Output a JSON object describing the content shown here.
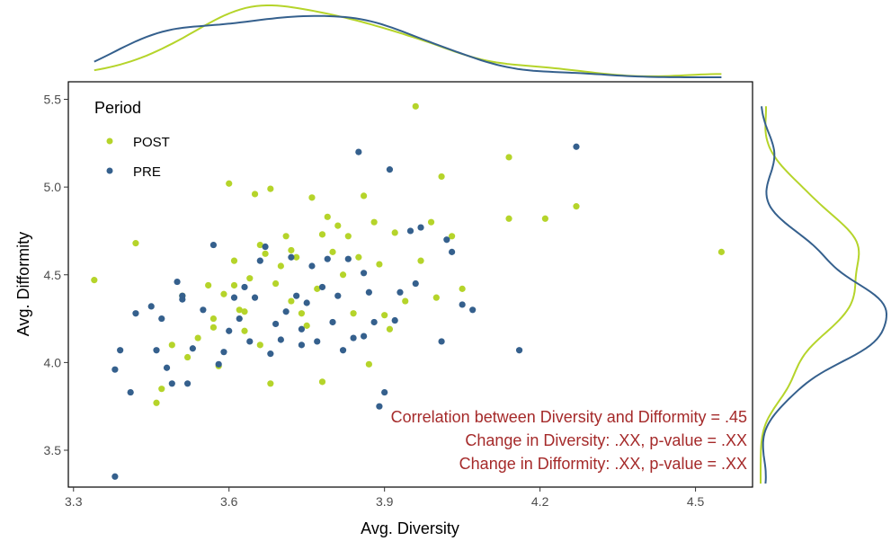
{
  "chart_data": {
    "type": "scatter",
    "title": "",
    "xlabel": "Avg. Diversity",
    "ylabel": "Avg. Difformity",
    "xlim": [
      3.29,
      4.61
    ],
    "ylim": [
      3.29,
      5.6
    ],
    "xticks": [
      3.3,
      3.6,
      3.9,
      4.2,
      4.5
    ],
    "xtick_labels": [
      "3.3",
      "3.6",
      "3.9",
      "4.2",
      "4.5"
    ],
    "yticks": [
      3.5,
      4.0,
      4.5,
      5.0,
      5.5
    ],
    "ytick_labels": [
      "3.5",
      "4.0",
      "4.5",
      "5.0",
      "5.5"
    ],
    "grid": false,
    "legend": {
      "title": "Period",
      "placement": "top-left",
      "entries": [
        "POST",
        "PRE"
      ]
    },
    "marginals": "density curves for each series above (x) and right (y)",
    "annotations": [
      "Correlation between Diversity and Difformity = .45",
      "Change in Diversity: .XX, p-value = .XX",
      "Change in Difformity: .XX, p-value = .XX"
    ],
    "series": [
      {
        "name": "POST",
        "color": "#b5d42a",
        "points": [
          [
            3.34,
            4.47
          ],
          [
            3.42,
            4.68
          ],
          [
            3.46,
            3.77
          ],
          [
            3.47,
            3.85
          ],
          [
            3.49,
            4.1
          ],
          [
            3.51,
            4.38
          ],
          [
            3.52,
            4.03
          ],
          [
            3.54,
            4.14
          ],
          [
            3.56,
            4.44
          ],
          [
            3.57,
            4.2
          ],
          [
            3.58,
            3.98
          ],
          [
            3.59,
            4.39
          ],
          [
            3.6,
            5.02
          ],
          [
            3.61,
            4.58
          ],
          [
            3.61,
            4.44
          ],
          [
            3.62,
            4.3
          ],
          [
            3.63,
            4.18
          ],
          [
            3.64,
            4.48
          ],
          [
            3.65,
            4.96
          ],
          [
            3.66,
            4.1
          ],
          [
            3.66,
            4.67
          ],
          [
            3.67,
            4.62
          ],
          [
            3.68,
            4.99
          ],
          [
            3.69,
            4.45
          ],
          [
            3.7,
            4.55
          ],
          [
            3.71,
            4.72
          ],
          [
            3.72,
            4.35
          ],
          [
            3.73,
            4.6
          ],
          [
            3.74,
            4.28
          ],
          [
            3.75,
            4.21
          ],
          [
            3.76,
            4.94
          ],
          [
            3.77,
            4.42
          ],
          [
            3.78,
            4.73
          ],
          [
            3.79,
            4.83
          ],
          [
            3.8,
            4.63
          ],
          [
            3.81,
            4.78
          ],
          [
            3.82,
            4.5
          ],
          [
            3.83,
            4.72
          ],
          [
            3.84,
            4.28
          ],
          [
            3.85,
            4.6
          ],
          [
            3.86,
            4.95
          ],
          [
            3.87,
            3.99
          ],
          [
            3.88,
            4.8
          ],
          [
            3.89,
            4.56
          ],
          [
            3.9,
            4.27
          ],
          [
            3.91,
            4.19
          ],
          [
            3.92,
            4.74
          ],
          [
            3.94,
            4.35
          ],
          [
            3.96,
            5.46
          ],
          [
            3.97,
            4.58
          ],
          [
            3.99,
            4.8
          ],
          [
            4.0,
            4.37
          ],
          [
            4.01,
            5.06
          ],
          [
            4.03,
            4.72
          ],
          [
            4.05,
            4.42
          ],
          [
            4.14,
            5.17
          ],
          [
            4.14,
            4.82
          ],
          [
            4.21,
            4.82
          ],
          [
            4.27,
            4.89
          ],
          [
            4.55,
            4.63
          ],
          [
            3.68,
            3.88
          ],
          [
            3.57,
            4.25
          ],
          [
            3.72,
            4.64
          ],
          [
            3.78,
            3.89
          ],
          [
            3.63,
            4.29
          ]
        ]
      },
      {
        "name": "PRE",
        "color": "#35608d",
        "points": [
          [
            3.38,
            3.96
          ],
          [
            3.38,
            3.35
          ],
          [
            3.39,
            4.07
          ],
          [
            3.41,
            3.83
          ],
          [
            3.42,
            4.28
          ],
          [
            3.45,
            4.32
          ],
          [
            3.46,
            4.07
          ],
          [
            3.47,
            4.25
          ],
          [
            3.48,
            3.97
          ],
          [
            3.49,
            3.88
          ],
          [
            3.5,
            4.46
          ],
          [
            3.51,
            4.36
          ],
          [
            3.51,
            4.38
          ],
          [
            3.52,
            3.88
          ],
          [
            3.53,
            4.08
          ],
          [
            3.55,
            4.3
          ],
          [
            3.57,
            4.67
          ],
          [
            3.58,
            3.99
          ],
          [
            3.59,
            4.06
          ],
          [
            3.6,
            4.18
          ],
          [
            3.62,
            4.25
          ],
          [
            3.63,
            4.43
          ],
          [
            3.64,
            4.12
          ],
          [
            3.65,
            4.37
          ],
          [
            3.66,
            4.58
          ],
          [
            3.67,
            4.66
          ],
          [
            3.68,
            4.05
          ],
          [
            3.69,
            4.22
          ],
          [
            3.7,
            4.13
          ],
          [
            3.71,
            4.29
          ],
          [
            3.72,
            4.6
          ],
          [
            3.73,
            4.38
          ],
          [
            3.74,
            4.19
          ],
          [
            3.75,
            4.34
          ],
          [
            3.76,
            4.55
          ],
          [
            3.77,
            4.12
          ],
          [
            3.78,
            4.43
          ],
          [
            3.79,
            4.59
          ],
          [
            3.8,
            4.23
          ],
          [
            3.81,
            4.38
          ],
          [
            3.82,
            4.07
          ],
          [
            3.83,
            4.59
          ],
          [
            3.84,
            4.14
          ],
          [
            3.85,
            5.2
          ],
          [
            3.86,
            4.51
          ],
          [
            3.87,
            4.4
          ],
          [
            3.88,
            4.23
          ],
          [
            3.89,
            3.75
          ],
          [
            3.9,
            3.83
          ],
          [
            3.91,
            5.1
          ],
          [
            3.92,
            4.24
          ],
          [
            3.93,
            4.4
          ],
          [
            3.95,
            4.75
          ],
          [
            3.96,
            4.45
          ],
          [
            3.97,
            4.77
          ],
          [
            4.01,
            4.12
          ],
          [
            4.02,
            4.7
          ],
          [
            4.03,
            4.63
          ],
          [
            4.05,
            4.33
          ],
          [
            4.07,
            4.3
          ],
          [
            4.16,
            4.07
          ],
          [
            4.27,
            5.23
          ],
          [
            3.61,
            4.37
          ],
          [
            3.74,
            4.1
          ],
          [
            3.86,
            4.15
          ]
        ]
      }
    ]
  }
}
